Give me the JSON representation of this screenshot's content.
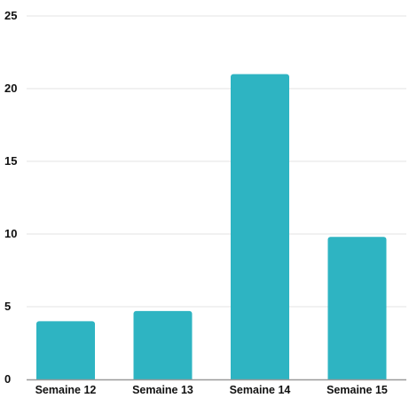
{
  "chart_data": {
    "type": "bar",
    "title": "",
    "xlabel": "",
    "ylabel": "",
    "categories": [
      "Semaine 12",
      "Semaine 13",
      "Semaine 14",
      "Semaine 15"
    ],
    "values": [
      4,
      4.7,
      21,
      9.8
    ],
    "ylim": [
      0,
      25
    ],
    "yticks": [
      0,
      5,
      10,
      15,
      20,
      25
    ],
    "grid": true,
    "legend": "none",
    "colors": {
      "bar": "#2EB4C2",
      "grid": "#E3E3E3",
      "axis": "#9A9A9A",
      "text": "#111111"
    }
  }
}
